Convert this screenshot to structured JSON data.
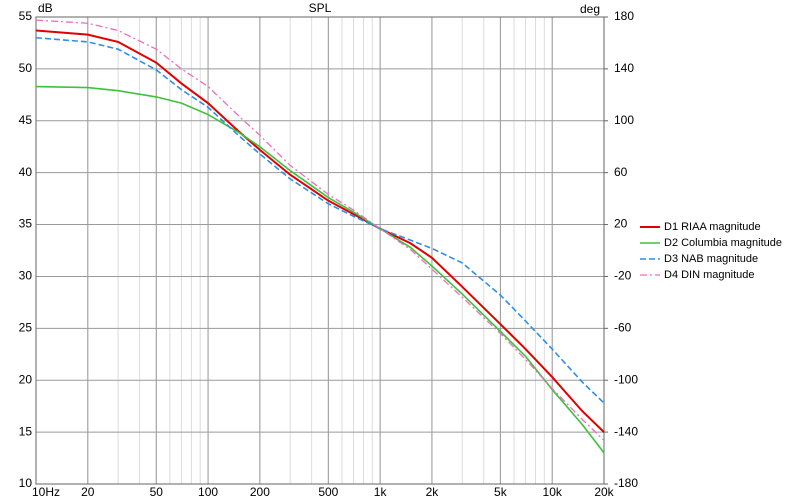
{
  "chart_data": {
    "type": "line",
    "title": "SPL",
    "y_unit": "dB",
    "y2_unit": "deg",
    "x_log": true,
    "grid": true,
    "minor_grid": true,
    "legend": "right",
    "xlim": [
      10,
      20000
    ],
    "xticks": [
      {
        "value": 10,
        "label": "10Hz"
      },
      20,
      50,
      100,
      200,
      500,
      {
        "value": 1000,
        "label": "1k"
      },
      {
        "value": 2000,
        "label": "2k"
      },
      {
        "value": 5000,
        "label": "5k"
      },
      {
        "value": 10000,
        "label": "10k"
      },
      {
        "value": 20000,
        "label": "20k"
      }
    ],
    "ylim": [
      10,
      55
    ],
    "yticks": [
      10,
      15,
      20,
      25,
      30,
      35,
      40,
      45,
      50,
      55
    ],
    "y2lim": [
      -180,
      180
    ],
    "y2ticks": [
      -180,
      -140,
      -100,
      -60,
      -20,
      20,
      60,
      100,
      140,
      180
    ],
    "x": [
      10,
      20,
      30,
      50,
      70,
      100,
      150,
      200,
      300,
      500,
      700,
      1000,
      1500,
      2000,
      3000,
      5000,
      7000,
      10000,
      15000,
      20000
    ],
    "series": [
      {
        "name": "D1 RIAA magnitude",
        "color": "#e00000",
        "dash": "solid",
        "width": 2,
        "values": [
          53.7,
          53.3,
          52.6,
          50.6,
          48.6,
          46.7,
          44.0,
          42.2,
          39.8,
          37.3,
          36.0,
          34.6,
          33.2,
          31.8,
          29.0,
          25.4,
          23.0,
          20.3,
          17.0,
          15.0
        ]
      },
      {
        "name": "D2 Columbia magnitude",
        "color": "#3cc23c",
        "dash": "solid",
        "width": 1.6,
        "values": [
          48.3,
          48.2,
          47.9,
          47.3,
          46.7,
          45.6,
          43.9,
          42.5,
          40.2,
          37.6,
          36.2,
          34.6,
          32.8,
          31.0,
          28.3,
          24.7,
          22.3,
          19.1,
          15.7,
          13.0
        ]
      },
      {
        "name": "D3 NAB magnitude",
        "color": "#2e8ee8",
        "dash": "dashed",
        "width": 1.6,
        "values": [
          53.0,
          52.6,
          51.9,
          49.9,
          48.0,
          46.3,
          43.6,
          41.8,
          39.4,
          37.0,
          35.8,
          34.6,
          33.5,
          32.7,
          31.3,
          28.2,
          25.7,
          23.0,
          19.8,
          17.8
        ]
      },
      {
        "name": "D4 DIN magnitude",
        "color": "#ec6ec0",
        "dash": "dashdot",
        "width": 1.3,
        "values": [
          54.7,
          54.4,
          53.7,
          51.9,
          50.0,
          48.3,
          45.5,
          43.6,
          40.7,
          37.9,
          36.4,
          34.6,
          32.6,
          30.7,
          28.0,
          24.5,
          22.0,
          19.2,
          16.2,
          14.2
        ]
      }
    ]
  }
}
